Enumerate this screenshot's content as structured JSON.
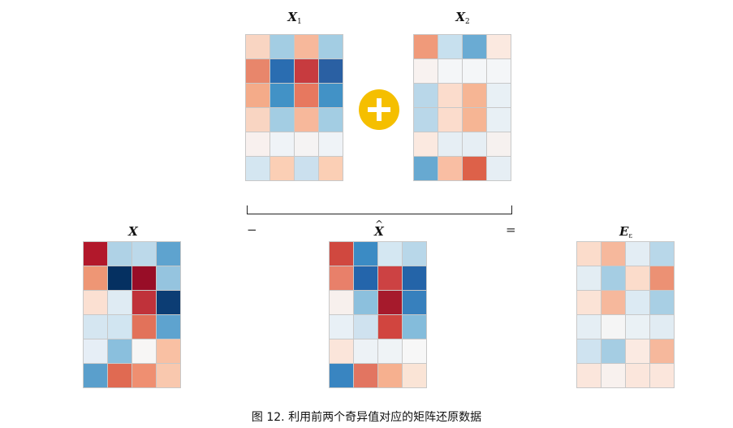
{
  "labels": {
    "x1": {
      "base": "X",
      "sub": "1"
    },
    "x2": {
      "base": "X",
      "sub": "2"
    },
    "x": {
      "base": "X"
    },
    "xhat": {
      "base": "X"
    },
    "e": {
      "base": "E",
      "sub": "ε"
    }
  },
  "operators": {
    "minus": "−",
    "equals": "="
  },
  "caption": "图 12. 利用前两个奇异值对应的矩阵还原数据",
  "colors": {
    "plus_badge": "#f5bf00",
    "cell_border": "#c8c8c8"
  },
  "icons": {
    "plus": "plus-icon"
  },
  "matrices": {
    "x1": [
      [
        "#f9d5c2",
        "#a3cde3",
        "#f7b89b",
        "#a3cde3"
      ],
      [
        "#e8866b",
        "#2a6db1",
        "#c73b3f",
        "#2a60a3"
      ],
      [
        "#f4ab89",
        "#4292c6",
        "#e7785f",
        "#4292c6"
      ],
      [
        "#f9d5c2",
        "#a3cde3",
        "#f7b89b",
        "#a3cde3"
      ],
      [
        "#f8f0ee",
        "#eff3f7",
        "#f5f3f3",
        "#eff3f7"
      ],
      [
        "#d4e6f1",
        "#fbcfb5",
        "#cbe0ee",
        "#fbcfb5"
      ]
    ],
    "x2": [
      [
        "#f09a7a",
        "#c7e0ee",
        "#6aabd3",
        "#fbe9e0"
      ],
      [
        "#f8f2f0",
        "#f4f6f8",
        "#f4f6f8",
        "#f4f6f8"
      ],
      [
        "#b9d7e9",
        "#fbdccc",
        "#f6b594",
        "#e8f0f5"
      ],
      [
        "#b9d7e9",
        "#fbdccc",
        "#f6b594",
        "#e8f0f5"
      ],
      [
        "#fbe9e0",
        "#e6eef4",
        "#e6eef4",
        "#f6f1ef"
      ],
      [
        "#67a9d1",
        "#f9bea3",
        "#dd6149",
        "#e6eef4"
      ]
    ],
    "x": [
      [
        "#b2182b",
        "#afd2e6",
        "#bcd9ea",
        "#5ea3cf"
      ],
      [
        "#ee9675",
        "#053061",
        "#980d27",
        "#95c4df"
      ],
      [
        "#fbe0d2",
        "#dfebf3",
        "#c0323a",
        "#0c3d74"
      ],
      [
        "#d5e6f1",
        "#d1e5f1",
        "#e2725a",
        "#5ea3cf"
      ],
      [
        "#e6eef6",
        "#8abfdd",
        "#f7f6f5",
        "#f9c0a3"
      ],
      [
        "#5a9fcc",
        "#e06a52",
        "#ef8f71",
        "#f9c8ae"
      ]
    ],
    "xhat": [
      [
        "#d0483f",
        "#3b8bc4",
        "#d4e7f2",
        "#b8d7e9"
      ],
      [
        "#e8806a",
        "#2465ab",
        "#cc4243",
        "#2464a8"
      ],
      [
        "#f7f0ed",
        "#8cc0dd",
        "#a61a2c",
        "#3780bd"
      ],
      [
        "#e8f0f6",
        "#cfe2ef",
        "#d1453f",
        "#84bcdb"
      ],
      [
        "#fbe5da",
        "#edf2f6",
        "#eff3f6",
        "#f7f7f7"
      ],
      [
        "#3985c1",
        "#e27561",
        "#f6b08f",
        "#fae4d6"
      ]
    ],
    "e": [
      [
        "#fbdccb",
        "#f6b89c",
        "#e3edf4",
        "#b8d7e9"
      ],
      [
        "#e3edf3",
        "#a5cde3",
        "#fbdccb",
        "#ec9174"
      ],
      [
        "#fbe3d6",
        "#f6b89c",
        "#dceaf3",
        "#a8cfe4"
      ],
      [
        "#e5eef4",
        "#f5f5f5",
        "#eaf1f5",
        "#e1ecf3"
      ],
      [
        "#cfe3f0",
        "#a5cde3",
        "#fbeae2",
        "#f6b89c"
      ],
      [
        "#fbe6dc",
        "#f8f1ee",
        "#fbe6dc",
        "#fbe6dc"
      ]
    ]
  }
}
